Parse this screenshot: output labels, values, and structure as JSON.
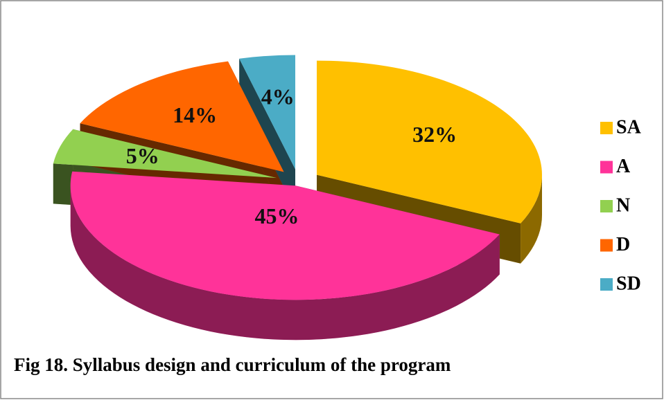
{
  "chart_data": {
    "type": "pie3d",
    "title": "Fig 18. Syllabus design and curriculum of the program",
    "categories": [
      "SA",
      "A",
      "N",
      "D",
      "SD"
    ],
    "values": [
      32,
      45,
      5,
      14,
      4
    ],
    "value_labels": [
      "32%",
      "45%",
      "5%",
      "14%",
      "4%"
    ],
    "colors": [
      "#FFC000",
      "#FF3399",
      "#92D050",
      "#FF6600",
      "#4BACC6"
    ],
    "legend": "right"
  }
}
